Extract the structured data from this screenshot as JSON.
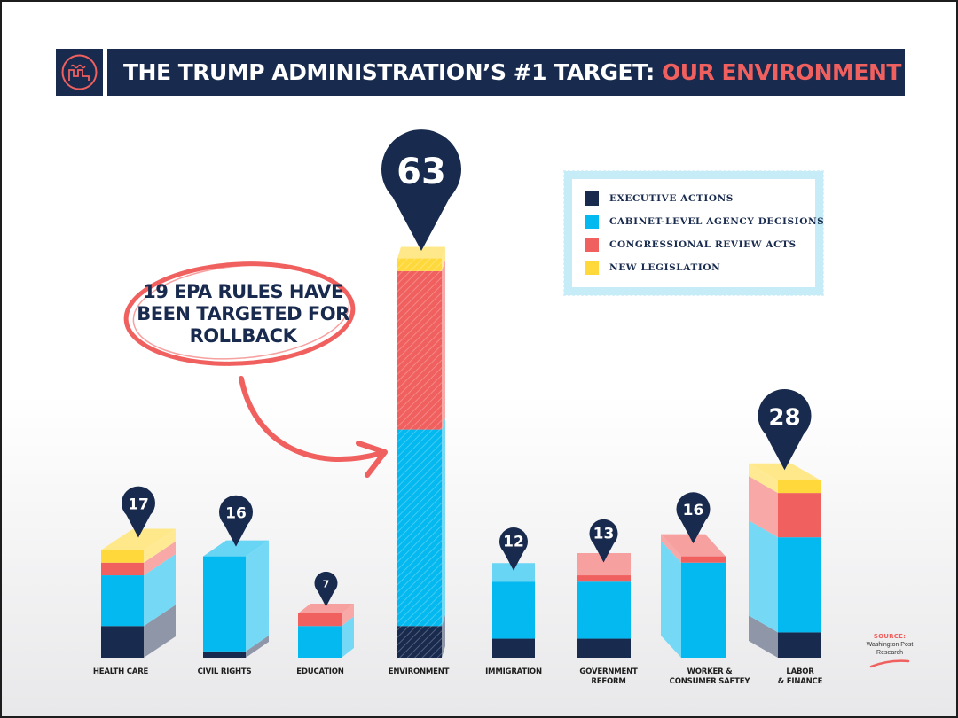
{
  "title": {
    "main": "THE TRUMP ADMINISTRATION’S #1 TARGET: ",
    "accent": "OUR ENVIRONMENT"
  },
  "logo": {
    "icon": "factory-icon"
  },
  "callout": {
    "text": "19 EPA RULES HAVE BEEN TARGETED FOR ROLLBACK"
  },
  "source": {
    "title": "SOURCE:",
    "text": "Washington Post\nResearch"
  },
  "colors": {
    "executive": "#182a4d",
    "cabinet": "#04b9ef",
    "congressional": "#f0605f",
    "legislation": "#ffd93b",
    "accent": "#f0605f"
  },
  "legend": [
    {
      "label": "EXECUTIVE ACTIONS",
      "color": "#182a4d"
    },
    {
      "label": "CABINET-LEVEL AGENCY DECISIONS",
      "color": "#04b9ef"
    },
    {
      "label": "CONGRESSIONAL REVIEW ACTS",
      "color": "#f0605f"
    },
    {
      "label": "NEW LEGISLATION",
      "color": "#ffd93b"
    }
  ],
  "chart_data": {
    "type": "bar",
    "stacked": true,
    "title": "THE TRUMP ADMINISTRATION’S #1 TARGET: OUR ENVIRONMENT",
    "categories": [
      "HEALTH CARE",
      "CIVIL RIGHTS",
      "EDUCATION",
      "ENVIRONMENT",
      "IMMIGRATION",
      "GOVERNMENT\nREFORM",
      "WORKER &\nCONSUMER SAFTEY",
      "LABOR\n& FINANCE"
    ],
    "totals": [
      17,
      16,
      7,
      63,
      12,
      13,
      16,
      28
    ],
    "series": [
      {
        "name": "EXECUTIVE ACTIONS",
        "values": [
          5,
          1,
          0,
          5,
          3,
          3,
          0,
          4
        ]
      },
      {
        "name": "CABINET-LEVEL AGENCY DECISIONS",
        "values": [
          8,
          15,
          5,
          31,
          9,
          9,
          15,
          15
        ]
      },
      {
        "name": "CONGRESSIONAL REVIEW ACTS",
        "values": [
          2,
          0,
          2,
          25,
          0,
          1,
          1,
          7
        ]
      },
      {
        "name": "NEW LEGISLATION",
        "values": [
          2,
          0,
          0,
          2,
          0,
          0,
          0,
          2
        ]
      }
    ],
    "ylim": [
      0,
      63
    ],
    "legend_position": "top-right",
    "grid": false
  }
}
